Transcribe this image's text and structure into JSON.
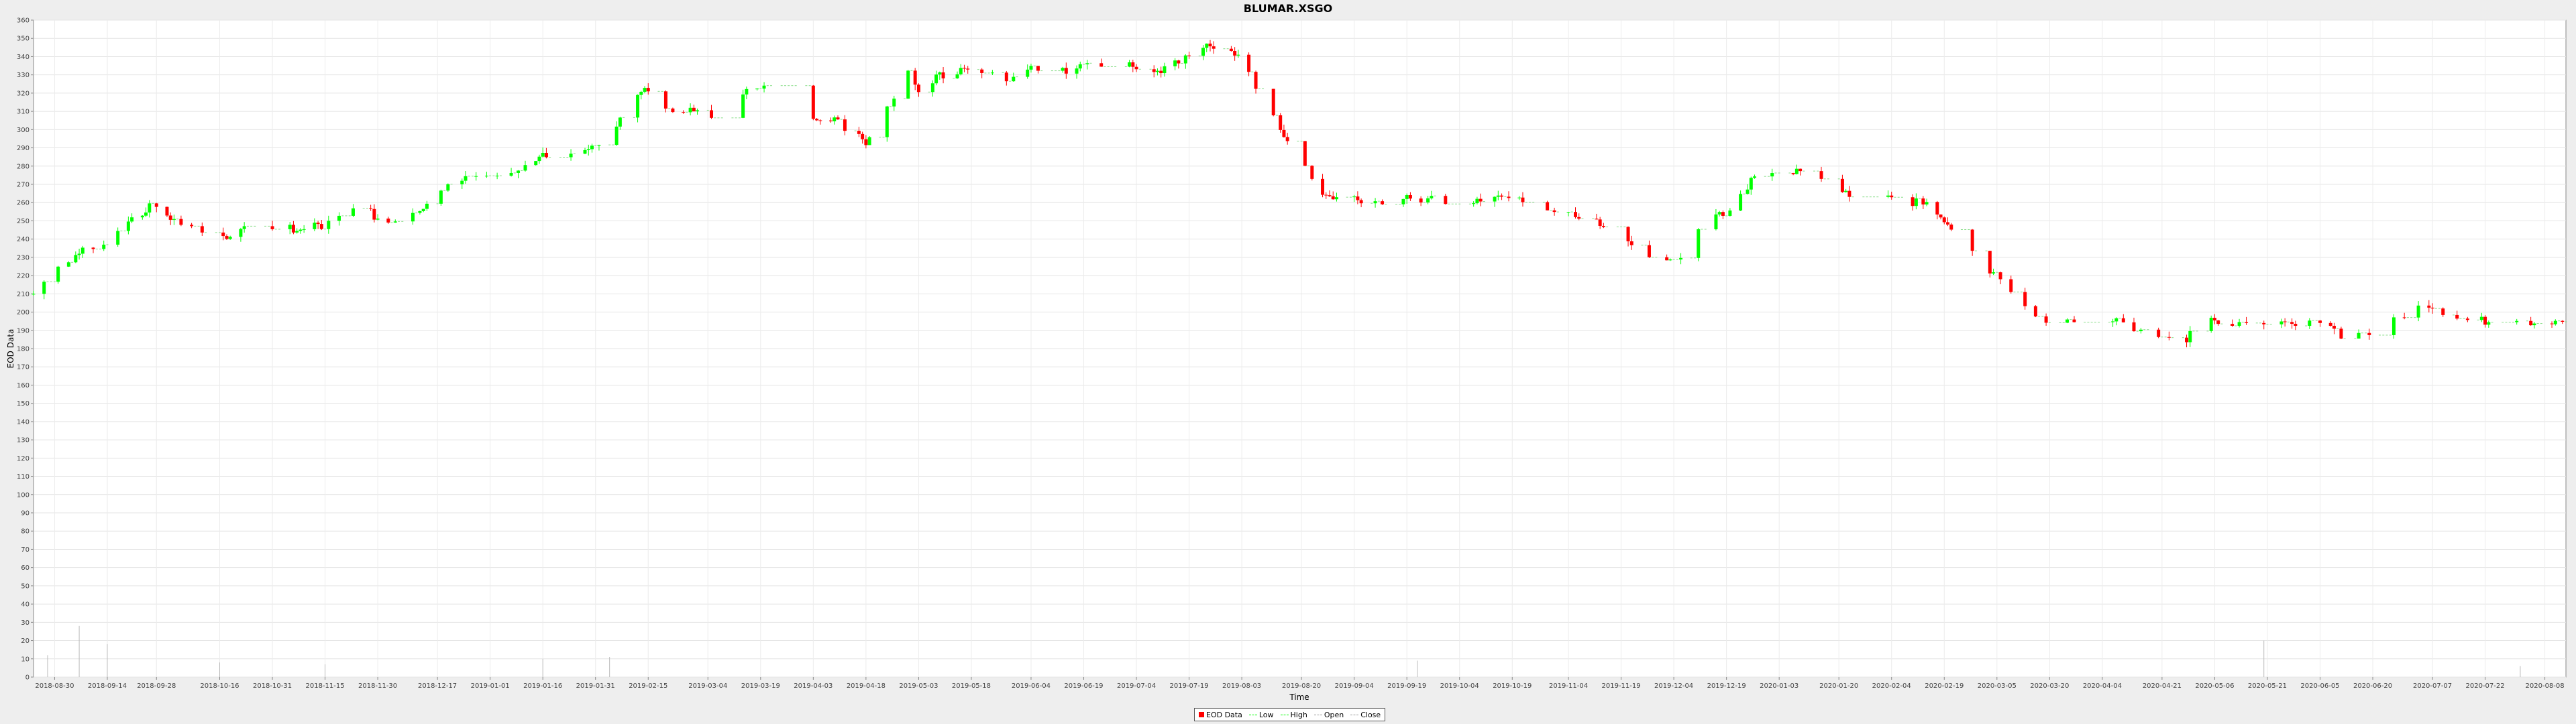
{
  "chart_data": {
    "type": "candlestick",
    "title": "BLUMAR.XSGO",
    "xlabel": "Time",
    "ylabel": "EOD Data",
    "ylim": [
      0,
      360
    ],
    "yticks": [
      0,
      10,
      20,
      30,
      40,
      50,
      60,
      70,
      80,
      90,
      100,
      110,
      120,
      130,
      140,
      150,
      160,
      170,
      180,
      190,
      200,
      210,
      220,
      230,
      240,
      250,
      260,
      270,
      280,
      290,
      300,
      310,
      320,
      330,
      340,
      350,
      360
    ],
    "xlim": [
      "2018-08-24",
      "2020-08-14"
    ],
    "xtick_dates": [
      "2018-08-30",
      "2018-09-14",
      "2018-09-28",
      "2018-10-16",
      "2018-10-31",
      "2018-11-15",
      "2018-11-30",
      "2018-12-17",
      "2019-01-01",
      "2019-01-16",
      "2019-01-31",
      "2019-02-15",
      "2019-03-04",
      "2019-03-19",
      "2019-04-03",
      "2019-04-18",
      "2019-05-03",
      "2019-05-18",
      "2019-06-04",
      "2019-06-19",
      "2019-07-04",
      "2019-07-19",
      "2019-08-03",
      "2019-08-20",
      "2019-09-04",
      "2019-09-19",
      "2019-10-04",
      "2019-10-19",
      "2019-11-04",
      "2019-11-19",
      "2019-12-04",
      "2019-12-19",
      "2020-01-03",
      "2020-01-20",
      "2020-02-04",
      "2020-02-19",
      "2020-03-05",
      "2020-03-20",
      "2020-04-04",
      "2020-04-21",
      "2020-05-06",
      "2020-05-21",
      "2020-06-05",
      "2020-06-20",
      "2020-07-07",
      "2020-07-22",
      "2020-08-08"
    ],
    "anchors": [
      [
        "2018-08-24",
        210
      ],
      [
        "2018-08-30",
        222
      ],
      [
        "2018-09-06",
        232
      ],
      [
        "2018-09-14",
        240
      ],
      [
        "2018-09-20",
        250
      ],
      [
        "2018-09-26",
        258
      ],
      [
        "2018-10-04",
        250
      ],
      [
        "2018-10-10",
        242
      ],
      [
        "2018-10-16",
        240
      ],
      [
        "2018-10-24",
        246
      ],
      [
        "2018-11-08",
        246
      ],
      [
        "2018-11-15",
        248
      ],
      [
        "2018-11-20",
        256
      ],
      [
        "2018-11-26",
        258
      ],
      [
        "2018-11-30",
        250
      ],
      [
        "2018-12-10",
        252
      ],
      [
        "2018-12-17",
        266
      ],
      [
        "2018-12-25",
        274
      ],
      [
        "2019-01-01",
        276
      ],
      [
        "2019-01-10",
        278
      ],
      [
        "2019-01-16",
        287
      ],
      [
        "2019-01-31",
        290
      ],
      [
        "2019-02-06",
        302
      ],
      [
        "2019-02-11",
        318
      ],
      [
        "2019-02-15",
        322
      ],
      [
        "2019-02-20",
        312
      ],
      [
        "2019-02-28",
        312
      ],
      [
        "2019-03-04",
        308
      ],
      [
        "2019-03-10",
        312
      ],
      [
        "2019-03-19",
        326
      ],
      [
        "2019-03-25",
        320
      ],
      [
        "2019-04-03",
        308
      ],
      [
        "2019-04-10",
        304
      ],
      [
        "2019-04-18",
        294
      ],
      [
        "2019-04-24",
        312
      ],
      [
        "2019-04-30",
        332
      ],
      [
        "2019-05-03",
        322
      ],
      [
        "2019-05-09",
        330
      ],
      [
        "2019-05-18",
        333
      ],
      [
        "2019-05-28",
        328
      ],
      [
        "2019-06-04",
        334
      ],
      [
        "2019-06-10",
        330
      ],
      [
        "2019-06-19",
        335
      ],
      [
        "2019-07-04",
        335
      ],
      [
        "2019-07-10",
        330
      ],
      [
        "2019-07-19",
        340
      ],
      [
        "2019-07-24",
        346
      ],
      [
        "2019-08-03",
        341
      ],
      [
        "2019-08-08",
        318
      ],
      [
        "2019-08-14",
        300
      ],
      [
        "2019-08-20",
        282
      ],
      [
        "2019-08-26",
        264
      ],
      [
        "2019-09-04",
        261
      ],
      [
        "2019-09-19",
        262
      ],
      [
        "2019-10-04",
        261
      ],
      [
        "2019-10-19",
        262
      ],
      [
        "2019-11-04",
        255
      ],
      [
        "2019-11-10",
        252
      ],
      [
        "2019-11-19",
        240
      ],
      [
        "2019-11-28",
        228
      ],
      [
        "2019-12-04",
        226
      ],
      [
        "2019-12-10",
        244
      ],
      [
        "2019-12-19",
        255
      ],
      [
        "2019-12-26",
        272
      ],
      [
        "2020-01-03",
        277
      ],
      [
        "2020-01-13",
        279
      ],
      [
        "2020-01-20",
        265
      ],
      [
        "2020-02-04",
        264
      ],
      [
        "2020-02-14",
        258
      ],
      [
        "2020-02-24",
        240
      ],
      [
        "2020-03-05",
        218
      ],
      [
        "2020-03-12",
        204
      ],
      [
        "2020-03-20",
        193
      ],
      [
        "2020-04-04",
        196
      ],
      [
        "2020-04-12",
        193
      ],
      [
        "2020-04-21",
        183
      ],
      [
        "2020-04-28",
        186
      ],
      [
        "2020-05-06",
        196
      ],
      [
        "2020-05-14",
        194
      ],
      [
        "2020-05-21",
        194
      ],
      [
        "2020-06-05",
        193
      ],
      [
        "2020-06-14",
        185
      ],
      [
        "2020-06-20",
        190
      ],
      [
        "2020-06-30",
        200
      ],
      [
        "2020-07-07",
        203
      ],
      [
        "2020-07-14",
        196
      ],
      [
        "2020-07-22",
        195
      ],
      [
        "2020-08-01",
        193
      ],
      [
        "2020-08-08",
        193
      ],
      [
        "2020-08-14",
        193
      ]
    ],
    "volume_spikes": [
      [
        "2018-08-28",
        12
      ],
      [
        "2018-09-06",
        28
      ],
      [
        "2018-09-14",
        18
      ],
      [
        "2018-10-16",
        8
      ],
      [
        "2018-11-15",
        7
      ],
      [
        "2019-01-16",
        10
      ],
      [
        "2019-02-04",
        11
      ],
      [
        "2019-09-22",
        9
      ],
      [
        "2020-05-20",
        20
      ],
      [
        "2020-08-01",
        6
      ]
    ],
    "series": [
      {
        "name": "EOD Data",
        "color": "#ff0000"
      },
      {
        "name": "Low",
        "color": "#00ff00"
      },
      {
        "name": "High",
        "color": "#00ff00"
      },
      {
        "name": "Open",
        "color": "#999999"
      },
      {
        "name": "Close",
        "color": "#999999"
      }
    ],
    "legend": "bottom-center",
    "up_color": "#00ff00",
    "down_color": "#ff0000",
    "grid": true
  }
}
